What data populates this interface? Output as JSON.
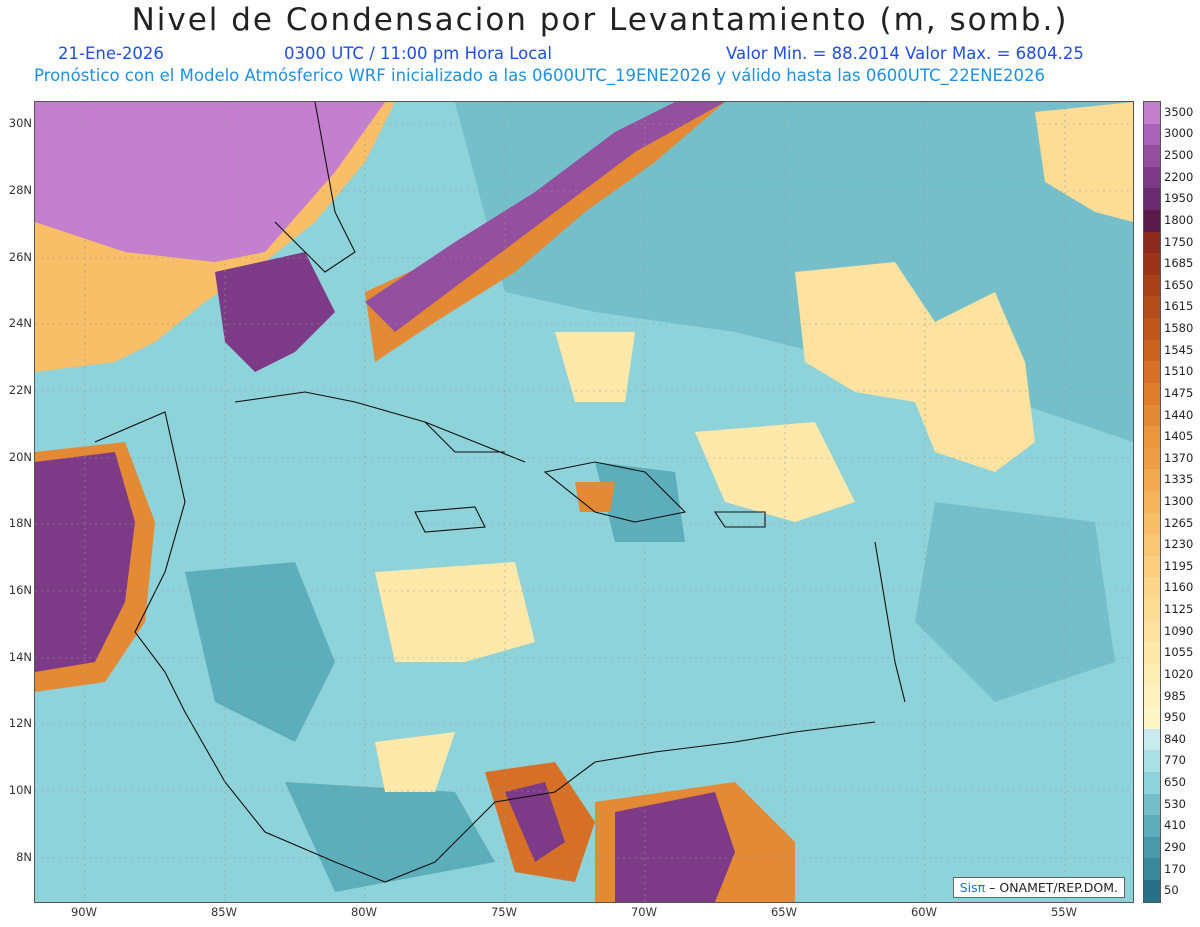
{
  "header": {
    "title": "Nivel de Condensacion por Levantamiento (m, somb.)",
    "date": "21-Ene-2026",
    "time": "0300 UTC / 11:00 pm Hora Local",
    "minmax": "Valor Min. = 88.2014   Valor Max. = 6804.25",
    "forecast": "Pronóstico con el Modelo Atmósferico WRF inicializado a las 0600UTC_19ENE2026 y válido hasta las  0600UTC_22ENE2026"
  },
  "axes": {
    "lat_labels": [
      "30N",
      "28N",
      "26N",
      "24N",
      "22N",
      "20N",
      "18N",
      "16N",
      "14N",
      "12N",
      "10N",
      "8N"
    ],
    "lon_labels": [
      "90W",
      "85W",
      "80W",
      "75W",
      "70W",
      "65W",
      "60W",
      "55W"
    ]
  },
  "colorbar": {
    "labels": [
      "3500",
      "3000",
      "2500",
      "2200",
      "1950",
      "1800",
      "1750",
      "1685",
      "1650",
      "1615",
      "1580",
      "1545",
      "1510",
      "1475",
      "1440",
      "1405",
      "1370",
      "1335",
      "1300",
      "1265",
      "1230",
      "1195",
      "1160",
      "1125",
      "1090",
      "1055",
      "1020",
      "985",
      "950",
      "840",
      "770",
      "650",
      "530",
      "410",
      "290",
      "170",
      "50"
    ],
    "colors": [
      "#c47fcf",
      "#a863b8",
      "#94509f",
      "#7d3a86",
      "#6a2a6e",
      "#5a1a4a",
      "#8b2a1a",
      "#9a3518",
      "#a84018",
      "#b44c1a",
      "#c0581c",
      "#cc6420",
      "#d67026",
      "#de7e2c",
      "#e48a34",
      "#ea963c",
      "#ee9f46",
      "#f2aa50",
      "#f5b45c",
      "#f8be68",
      "#f9c674",
      "#fbce80",
      "#fcd68c",
      "#fddc96",
      "#fde2a0",
      "#fee8aa",
      "#ffeeb4",
      "#fff2be",
      "#fff6c8",
      "#c8ecee",
      "#a8e0e6",
      "#8ed2da",
      "#74bfca",
      "#5caeba",
      "#4899aa",
      "#38889a",
      "#286f88"
    ]
  },
  "credit": {
    "brand": "Sisπ",
    "org": " – ONAMET/REP.DOM."
  }
}
